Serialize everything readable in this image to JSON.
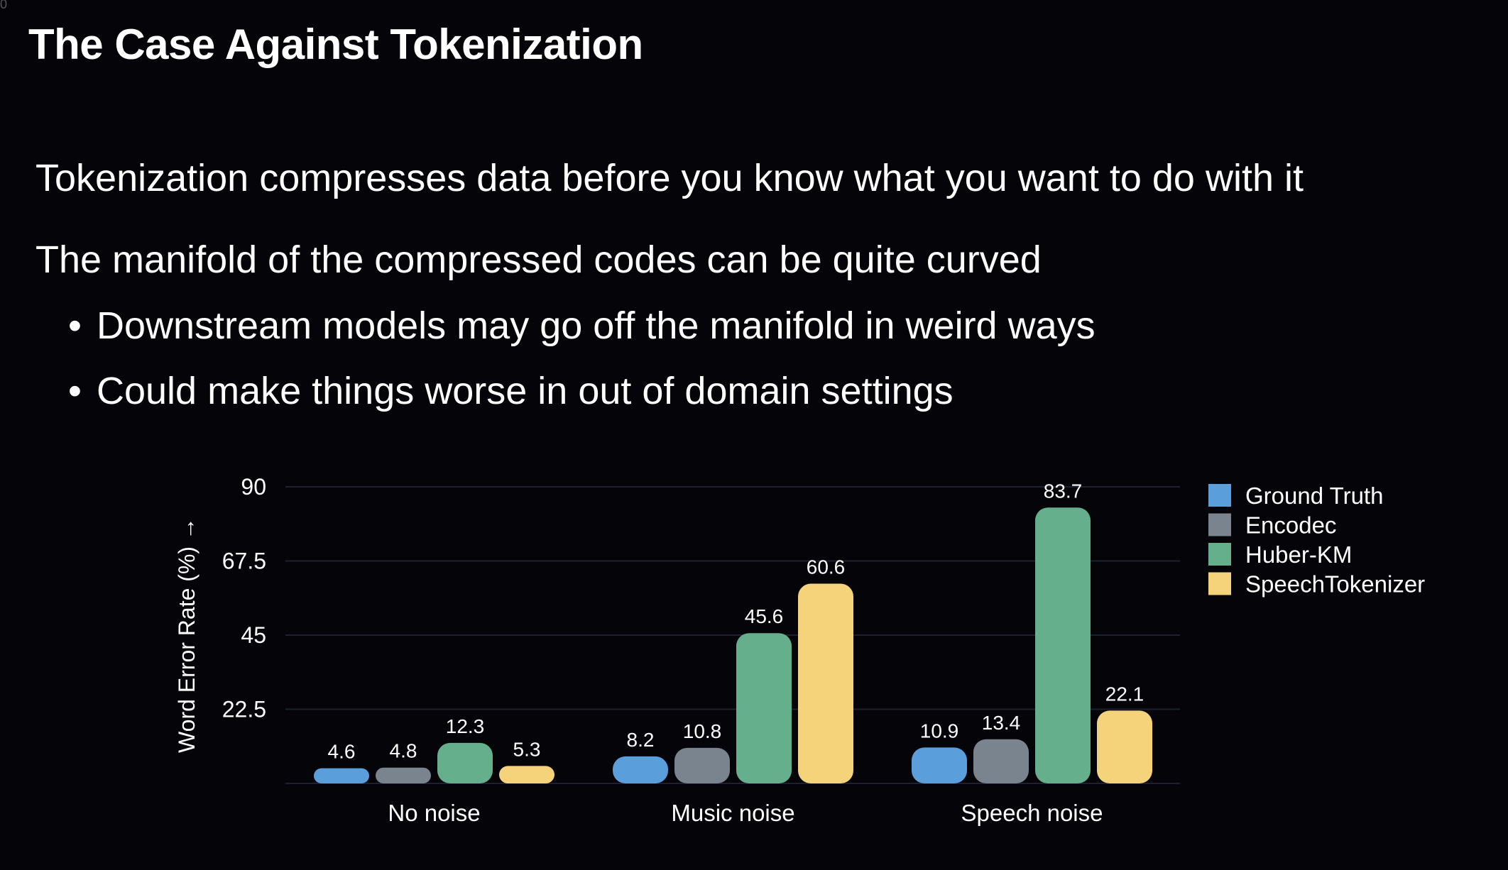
{
  "corner_mark": "0",
  "slide": {
    "title": "The Case Against Tokenization",
    "points": [
      "Tokenization compresses data before you know what you want to do with it",
      "The manifold of the compressed codes can be quite curved"
    ],
    "sub_points": [
      "Downstream models may go off the manifold in weird ways",
      "Could make things worse in out of domain settings"
    ],
    "bullet_glyph": "•"
  },
  "chart_data": {
    "type": "bar",
    "title": "",
    "xlabel": "",
    "ylabel": "Word Error Rate (%) →",
    "ylim": [
      0,
      90
    ],
    "yticks": [
      22.5,
      45,
      67.5,
      90
    ],
    "ytick_labels": [
      "22.5",
      "45",
      "67.5",
      "90"
    ],
    "grid": true,
    "legend_position": "right",
    "categories": [
      "No noise",
      "Music noise",
      "Speech noise"
    ],
    "series": [
      {
        "name": "Ground Truth",
        "color": "#5a9edb",
        "values": [
          4.6,
          8.2,
          10.9
        ],
        "labels": [
          "4.6",
          "8.2",
          "10.9"
        ]
      },
      {
        "name": "Encodec",
        "color": "#79848f",
        "values": [
          4.8,
          10.8,
          13.4
        ],
        "labels": [
          "4.8",
          "10.8",
          "13.4"
        ]
      },
      {
        "name": "Huber-KM",
        "color": "#65af8d",
        "values": [
          12.3,
          45.6,
          83.7
        ],
        "labels": [
          "12.3",
          "45.6",
          "83.7"
        ]
      },
      {
        "name": "SpeechTokenizer",
        "color": "#f4d37a",
        "values": [
          5.3,
          60.6,
          22.1
        ],
        "labels": [
          "5.3",
          "60.6",
          "22.1"
        ]
      }
    ]
  }
}
